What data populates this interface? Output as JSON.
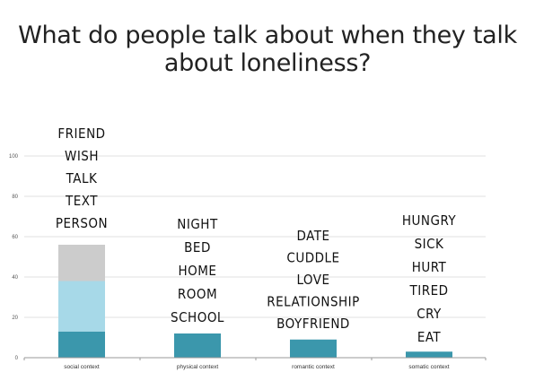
{
  "title_lines": [
    "What do people talk about when they talk",
    "about loneliness?"
  ],
  "chart_data": {
    "type": "bar",
    "stacked": true,
    "categories": [
      "social context",
      "physical context",
      "romantic context",
      "somatic context"
    ],
    "ylim": [
      0,
      100
    ],
    "yticks": [
      0,
      20,
      40,
      60,
      80,
      100
    ],
    "grid": true,
    "series": [
      {
        "values": [
          13,
          12,
          9,
          3
        ],
        "color": "#3b97ac"
      },
      {
        "values": [
          25,
          0,
          0,
          0
        ],
        "color": "#a7d9e8"
      },
      {
        "values": [
          18,
          0,
          0,
          0
        ],
        "color": "#cccccc"
      }
    ],
    "word_lists": [
      [
        "FRIEND",
        "WISH",
        "TALK",
        "TEXT",
        "PERSON"
      ],
      [
        "NIGHT",
        "BED",
        "HOME",
        "ROOM",
        "SCHOOL"
      ],
      [
        "DATE",
        "CUDDLE",
        "LOVE",
        "RELATIONSHIP",
        "BOYFRIEND"
      ],
      [
        "HUNGRY",
        "SICK",
        "HURT",
        "TIRED",
        "CRY",
        "EAT"
      ]
    ]
  }
}
